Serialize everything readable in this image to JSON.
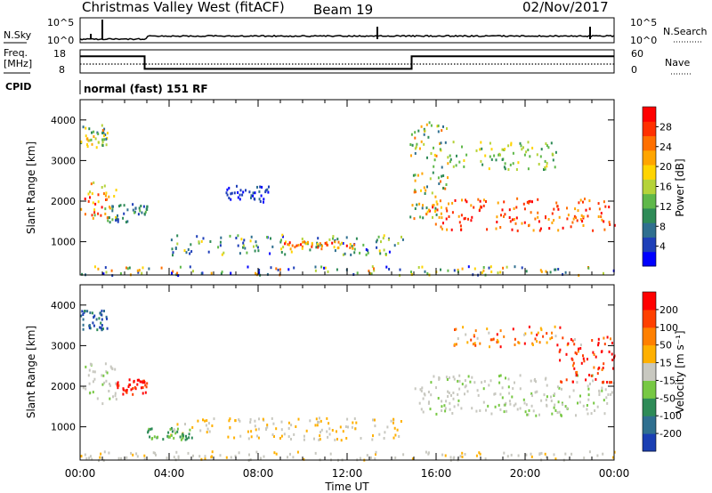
{
  "header": {
    "title": "Christmas Valley West (fitACF)",
    "beam": "Beam 19",
    "date": "02/Nov/2017"
  },
  "strip_nsky": {
    "label": "N.Sky",
    "right_label": "N.Search",
    "tick_top": "10^5",
    "tick_bottom": "10^0"
  },
  "strip_freq": {
    "label_line1": "Freq.",
    "label_line2": "[MHz]",
    "right_label": "Nave",
    "left_ticks": [
      "18",
      "8"
    ],
    "right_ticks": [
      "60",
      "0"
    ],
    "freq_steps": [
      {
        "from": 0.0,
        "to": 2.9,
        "level": 0.72
      },
      {
        "from": 2.9,
        "to": 14.9,
        "level": 0.18
      },
      {
        "from": 14.9,
        "to": 24.0,
        "level": 0.72
      }
    ]
  },
  "cpid": {
    "label": "CPID",
    "value": "normal (fast) 151 RF"
  },
  "chart_data": [
    {
      "type": "heatmap",
      "ylabel": "Slant Range [km]",
      "xlabel": "Time UT",
      "x_ticks": [
        "00:00",
        "04:00",
        "08:00",
        "12:00",
        "16:00",
        "20:00",
        "00:00"
      ],
      "y_ticks": [
        "1000",
        "2000",
        "3000",
        "4000"
      ],
      "xlim": [
        0,
        24
      ],
      "ylim": [
        180,
        4500
      ],
      "colorbar": {
        "label": "Power [dB]",
        "ticks": [
          "4",
          "8",
          "12",
          "16",
          "20",
          "24",
          "28"
        ],
        "colors": [
          "#0000ff",
          "#1e3fb8",
          "#2f6f8f",
          "#2e8b57",
          "#5fb84a",
          "#b5d33a",
          "#ffd400",
          "#ffa500",
          "#ff7000",
          "#ff3000",
          "#ff0000"
        ]
      },
      "scatter_regions": [
        {
          "t0": 0.0,
          "t1": 1.2,
          "r0": 3300,
          "r1": 3900,
          "cmin": 0.2,
          "cmax": 0.75
        },
        {
          "t0": 0.0,
          "t1": 1.6,
          "r0": 1600,
          "r1": 2500,
          "cmin": 0.35,
          "cmax": 0.95
        },
        {
          "t0": 1.2,
          "t1": 3.0,
          "r0": 1500,
          "r1": 2000,
          "cmin": 0.1,
          "cmax": 0.4
        },
        {
          "t0": 4.0,
          "t1": 14.5,
          "r0": 700,
          "r1": 1200,
          "cmin": 0.05,
          "cmax": 0.6
        },
        {
          "t0": 9.0,
          "t1": 12.5,
          "r0": 850,
          "r1": 1050,
          "cmin": 0.6,
          "cmax": 0.95
        },
        {
          "t0": 6.5,
          "t1": 8.5,
          "r0": 2000,
          "r1": 2400,
          "cmin": 0.05,
          "cmax": 0.2
        },
        {
          "t0": 15.5,
          "t1": 24.0,
          "r0": 1300,
          "r1": 2100,
          "cmin": 0.65,
          "cmax": 1.0
        },
        {
          "t0": 14.8,
          "t1": 16.5,
          "r0": 1600,
          "r1": 4000,
          "cmin": 0.2,
          "cmax": 0.8
        },
        {
          "t0": 16.5,
          "t1": 21.5,
          "r0": 2800,
          "r1": 3500,
          "cmin": 0.3,
          "cmax": 0.6
        },
        {
          "t0": 0.0,
          "t1": 24.0,
          "r0": 200,
          "r1": 420,
          "cmin": 0.0,
          "cmax": 0.8
        }
      ]
    },
    {
      "type": "heatmap",
      "ylabel": "Slant Range [km]",
      "xlabel": "Time UT",
      "x_ticks": [
        "00:00",
        "04:00",
        "08:00",
        "12:00",
        "16:00",
        "20:00",
        "00:00"
      ],
      "y_ticks": [
        "1000",
        "2000",
        "3000",
        "4000"
      ],
      "xlim": [
        0,
        24
      ],
      "ylim": [
        180,
        4500
      ],
      "colorbar": {
        "label": "Velocity [m s⁻¹]",
        "ticks": [
          "200",
          "100",
          "50",
          "15",
          "-15",
          "-50",
          "-100",
          "-200"
        ],
        "colors": [
          "#1a3fb3",
          "#2f6f8f",
          "#2e8b57",
          "#77c843",
          "#c8c8c0",
          "#ffb000",
          "#ff8000",
          "#ff4000",
          "#ff0000"
        ]
      },
      "scatter_regions": [
        {
          "t0": 0.0,
          "t1": 1.2,
          "r0": 3400,
          "r1": 3900,
          "cmin": 0.0,
          "cmax": 0.25
        },
        {
          "t0": 0.0,
          "t1": 1.6,
          "r0": 1600,
          "r1": 2600,
          "cmin": 0.42,
          "cmax": 0.5
        },
        {
          "t0": 1.5,
          "t1": 3.0,
          "r0": 1800,
          "r1": 2200,
          "cmin": 0.85,
          "cmax": 1.0
        },
        {
          "t0": 4.0,
          "t1": 14.5,
          "r0": 700,
          "r1": 1250,
          "cmin": 0.45,
          "cmax": 0.65
        },
        {
          "t0": 3.0,
          "t1": 5.0,
          "r0": 700,
          "r1": 1000,
          "cmin": 0.3,
          "cmax": 0.38
        },
        {
          "t0": 15.0,
          "t1": 24.0,
          "r0": 1300,
          "r1": 2300,
          "cmin": 0.42,
          "cmax": 0.5
        },
        {
          "t0": 16.5,
          "t1": 22.5,
          "r0": 3000,
          "r1": 3500,
          "cmin": 0.5,
          "cmax": 0.95
        },
        {
          "t0": 21.5,
          "t1": 24.0,
          "r0": 2100,
          "r1": 3300,
          "cmin": 0.75,
          "cmax": 1.0
        },
        {
          "t0": 0.0,
          "t1": 24.0,
          "r0": 200,
          "r1": 420,
          "cmin": 0.45,
          "cmax": 0.6
        }
      ]
    }
  ]
}
